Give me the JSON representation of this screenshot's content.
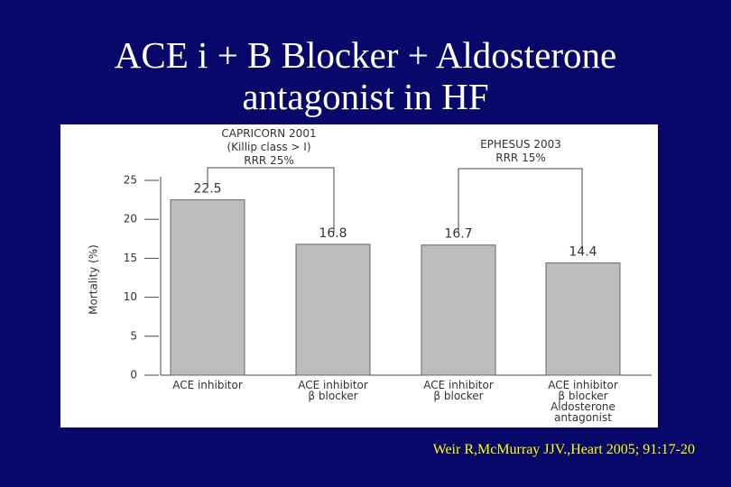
{
  "title": "ACE i + B Blocker + Aldosterone antagonist in HF",
  "citation": "Weir R,McMurray JJV.,Heart 2005; 91:17-20",
  "chart_data": {
    "type": "bar",
    "y_label": "Mortality (%)",
    "categories": [
      [
        "ACE inhibitor"
      ],
      [
        "ACE inhibitor",
        "β blocker"
      ],
      [
        "ACE inhibitor",
        "β blocker"
      ],
      [
        "ACE inhibitor",
        "β blocker",
        "Aldosterone",
        "antagonist"
      ]
    ],
    "values": [
      22.5,
      16.8,
      16.7,
      14.4
    ],
    "color": "#bdbdbd",
    "ylim": [
      0,
      25
    ],
    "yticks": [
      0,
      5,
      10,
      15,
      20,
      25
    ],
    "annotations": [
      [
        "CAPRICORN 2001",
        "(Killip class > I)",
        "RRR 25%"
      ],
      [
        "EPHESUS 2003",
        "RRR 15%"
      ]
    ]
  }
}
